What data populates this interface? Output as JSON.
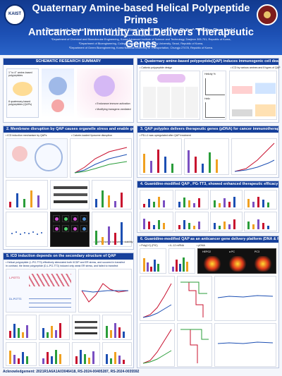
{
  "header": {
    "title_line1": "Quaternary Amine-based Helical Polypeptide Primes",
    "title_line2": "Anticancer Immunity and Delivers Therapeutic Genes",
    "authors": "Susam Lee¹, Jiao Ao¹, Haewon Park¹, A-Rum Yoon¹, Yong-Kyu², Lee Chae-Ok Yun²·³ and Yeu-Chun Kim¹·*",
    "email": "*E-mail addresses: dohuaji@kaist.ac.kr (Y.C. Kim)",
    "affiliations": [
      "¹Department of Chemical and Biomolecular Engineering, Korea Advanced Institute of Science and Technology, Daejeon 305-701, Republic of Korea,",
      "²Department of Bioengineering, College of Engineering, Hanyang University, Seoul, Republic of Korea,",
      "³Department of Green Bioengineering, Korea National University of Transportation, Chungju 27478, Republic of Korea."
    ],
    "logo_left": "KAIST"
  },
  "sections": {
    "schematic": "SCHEMATIC RESEARCH SUMMARY",
    "s1": "1. Quaternary amine-based polypeptide(QAP) induces immunogenic cell death(ICD)",
    "s2": "2. Membrane disruption by QAP causes organelle stress and enable gene delivery",
    "s3": "3. QAP polyplex delivers therapeutic genes (pDNA) for cancer immunotherapy",
    "s4": "4. Guanidine-modified QAP , PG-TT3, showed enhanced therapeutic efficacy",
    "s5": "5. ICD induction depends on the secondary structure of QAP",
    "s6": "6. Guanidine-modified QAP as an anticancer gene delivery platform (DNA & RNA)"
  },
  "labels": {
    "cationic": "• Cationic polypeptide design",
    "icd_tumor": "• ICD by various amines and 8 types of QAP",
    "helicity": "Helicity %",
    "helix": "Helix",
    "icd_mech": "• ICD induction mechanism by QAPs",
    "calcein": "• Calcein-loaded liposome disruption",
    "pdl1": "• PD-L1 was upregulated after QAP treatment",
    "gaps": "• QAPs showed low serum stability",
    "racemic": "• Helical polypeptide (L-PG-TT3) effectively stimulated both IICDP and ER stress, and succeed in transfect",
    "racemic2": "   In contrast, the linear polypeptide (D,L-PG-TT3) induced only weak ER stress, and failed to transfect",
    "lpg": "L-PGTT3",
    "dlpg": "DL-PGTT3",
    "polyic": "• Poly(I:C) (PIC)",
    "il12": "• IL-12 mRNA",
    "pdna": "• pDNA",
    "hepg2": "HEPG2",
    "a549": "a PC",
    "pc3": "PC3",
    "summary_icd": "• Endurance immune activation",
    "summary_gene": "• Modifying transgene-mediated",
    "qap_label": "8 quaternary-based polypeptides (QAPs)",
    "amines": "1° to 4° amine-based polypeptides",
    "ack": "Acknowledgement: 2021R1A6A1A03046418, RS-2024-00405287, RS-2024-0035592"
  },
  "colors": {
    "accent": "#16409b",
    "header": "#1c4fb3",
    "highlight": "#c8102e"
  }
}
